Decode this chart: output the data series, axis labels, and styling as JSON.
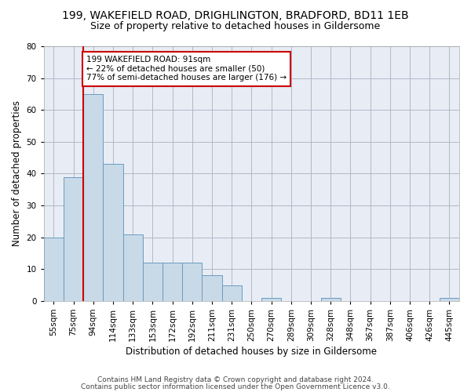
{
  "title1": "199, WAKEFIELD ROAD, DRIGHLINGTON, BRADFORD, BD11 1EB",
  "title2": "Size of property relative to detached houses in Gildersome",
  "xlabel": "Distribution of detached houses by size in Gildersome",
  "ylabel": "Number of detached properties",
  "categories": [
    "55sqm",
    "75sqm",
    "94sqm",
    "114sqm",
    "133sqm",
    "153sqm",
    "172sqm",
    "192sqm",
    "211sqm",
    "231sqm",
    "250sqm",
    "270sqm",
    "289sqm",
    "309sqm",
    "328sqm",
    "348sqm",
    "367sqm",
    "387sqm",
    "406sqm",
    "426sqm",
    "445sqm"
  ],
  "values": [
    20,
    39,
    65,
    43,
    21,
    12,
    12,
    12,
    8,
    5,
    0,
    1,
    0,
    0,
    1,
    0,
    0,
    0,
    0,
    0,
    1
  ],
  "bar_color": "#c8d9e8",
  "bar_edge_color": "#6a9cbf",
  "highlight_bar_index": 2,
  "highlight_line_color": "#cc0000",
  "annotation_text": "199 WAKEFIELD ROAD: 91sqm\n← 22% of detached houses are smaller (50)\n77% of semi-detached houses are larger (176) →",
  "annotation_box_color": "#ffffff",
  "annotation_box_edge": "#cc0000",
  "ylim": [
    0,
    80
  ],
  "yticks": [
    0,
    10,
    20,
    30,
    40,
    50,
    60,
    70,
    80
  ],
  "grid_color": "#b0b8c8",
  "bg_color": "#e8edf5",
  "footer1": "Contains HM Land Registry data © Crown copyright and database right 2024.",
  "footer2": "Contains public sector information licensed under the Open Government Licence v3.0.",
  "title1_fontsize": 10,
  "title2_fontsize": 9,
  "xlabel_fontsize": 8.5,
  "ylabel_fontsize": 8.5,
  "tick_fontsize": 7.5,
  "annotation_fontsize": 7.5,
  "footer_fontsize": 6.5
}
